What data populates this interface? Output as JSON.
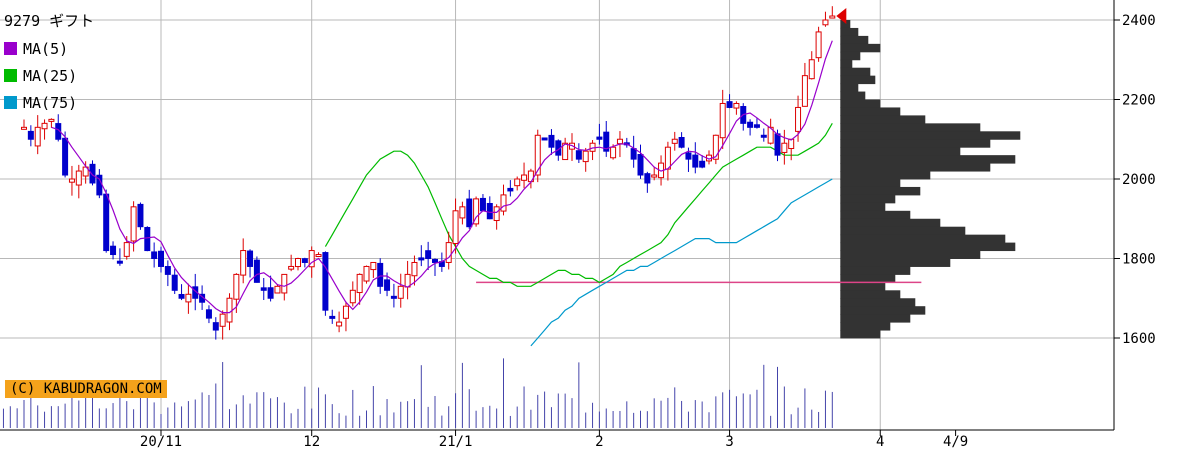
{
  "chart_data": {
    "type": "candlestick",
    "title": "9279 ギフト",
    "legend": [
      {
        "label": "MA(5)",
        "color": "#9900cc"
      },
      {
        "label": "MA(25)",
        "color": "#00bb00"
      },
      {
        "label": "MA(75)",
        "color": "#0099cc"
      }
    ],
    "credit": "(C) KABUDRAGON.COM",
    "y_ticks": [
      "2400",
      "2200",
      "2000",
      "1800",
      "1600"
    ],
    "ylim": [
      1460,
      2440
    ],
    "x_ticks": [
      {
        "label": "20/11",
        "index": 20
      },
      {
        "label": "12",
        "index": 42
      },
      {
        "label": "21/1",
        "index": 63
      },
      {
        "label": "2",
        "index": 84
      },
      {
        "label": "3",
        "index": 103
      },
      {
        "label": "4",
        "index": 125
      },
      {
        "label": "4/9",
        "index": 136
      }
    ],
    "reference_line": {
      "value": 1740,
      "color": "#dd4488"
    },
    "series": [
      {
        "name": "close",
        "values": [
          2130,
          2100,
          2130,
          2140,
          2150,
          2100,
          2010,
          2000,
          2020,
          2030,
          1990,
          1960,
          1820,
          1810,
          1790,
          1840,
          1930,
          1880,
          1820,
          1800,
          1780,
          1760,
          1720,
          1700,
          1710,
          1700,
          1690,
          1650,
          1620,
          1660,
          1700,
          1760,
          1820,
          1780,
          1740,
          1720,
          1700,
          1730,
          1760,
          1780,
          1800,
          1790,
          1820,
          1810,
          1670,
          1650,
          1640,
          1680,
          1720,
          1760,
          1780,
          1790,
          1730,
          1720,
          1700,
          1730,
          1760,
          1790,
          1800,
          1800,
          1790,
          1780,
          1840,
          1920,
          1930,
          1880,
          1950,
          1920,
          1900,
          1930,
          1960,
          1970,
          2000,
          2010,
          2020,
          2110,
          2100,
          2080,
          2060,
          2090,
          2090,
          2050,
          2070,
          2090,
          2100,
          2070,
          2080,
          2100,
          2090,
          2050,
          2010,
          1990,
          2010,
          2040,
          2080,
          2100,
          2080,
          2050,
          2030,
          2030,
          2060,
          2110,
          2190,
          2180,
          2190,
          2140,
          2130,
          2130,
          2110,
          2130,
          2060,
          2090,
          2100,
          2180,
          2260,
          2300,
          2370,
          2400,
          2410
        ]
      },
      {
        "name": "MA(25)",
        "values": [
          1830,
          1860,
          1890,
          1920,
          1950,
          1980,
          2010,
          2030,
          2050,
          2060,
          2070,
          2070,
          2060,
          2040,
          2010,
          1980,
          1940,
          1900,
          1860,
          1830,
          1800,
          1780,
          1770,
          1760,
          1750,
          1750,
          1740,
          1740,
          1730,
          1730,
          1730,
          1740,
          1750,
          1760,
          1770,
          1770,
          1760,
          1760,
          1750,
          1750,
          1740,
          1750,
          1760,
          1780,
          1790,
          1800,
          1810,
          1820,
          1830,
          1840,
          1860,
          1890,
          1910,
          1930,
          1950,
          1970,
          1990,
          2010,
          2030,
          2040,
          2050,
          2060,
          2070,
          2080,
          2080,
          2080,
          2070,
          2060,
          2060,
          2060,
          2070,
          2080,
          2090,
          2110,
          2140
        ]
      },
      {
        "name": "MA(75)",
        "values": [
          1580,
          1600,
          1620,
          1640,
          1650,
          1670,
          1680,
          1700,
          1710,
          1720,
          1730,
          1740,
          1750,
          1760,
          1770,
          1770,
          1780,
          1780,
          1790,
          1800,
          1810,
          1820,
          1830,
          1840,
          1850,
          1850,
          1850,
          1840,
          1840,
          1840,
          1840,
          1850,
          1860,
          1870,
          1880,
          1890,
          1900,
          1920,
          1940,
          1950,
          1960,
          1970,
          1980,
          1990,
          2000
        ]
      },
      {
        "name": "volume_profile",
        "values": [
          10,
          18,
          28,
          40,
          20,
          12,
          30,
          35,
          18,
          25,
          40,
          60,
          85,
          140,
          180,
          150,
          120,
          175,
          150,
          90,
          60,
          80,
          55,
          45,
          70,
          100,
          125,
          165,
          175,
          140,
          110,
          70,
          55,
          45,
          60,
          75,
          85,
          70,
          50,
          40
        ]
      }
    ]
  }
}
